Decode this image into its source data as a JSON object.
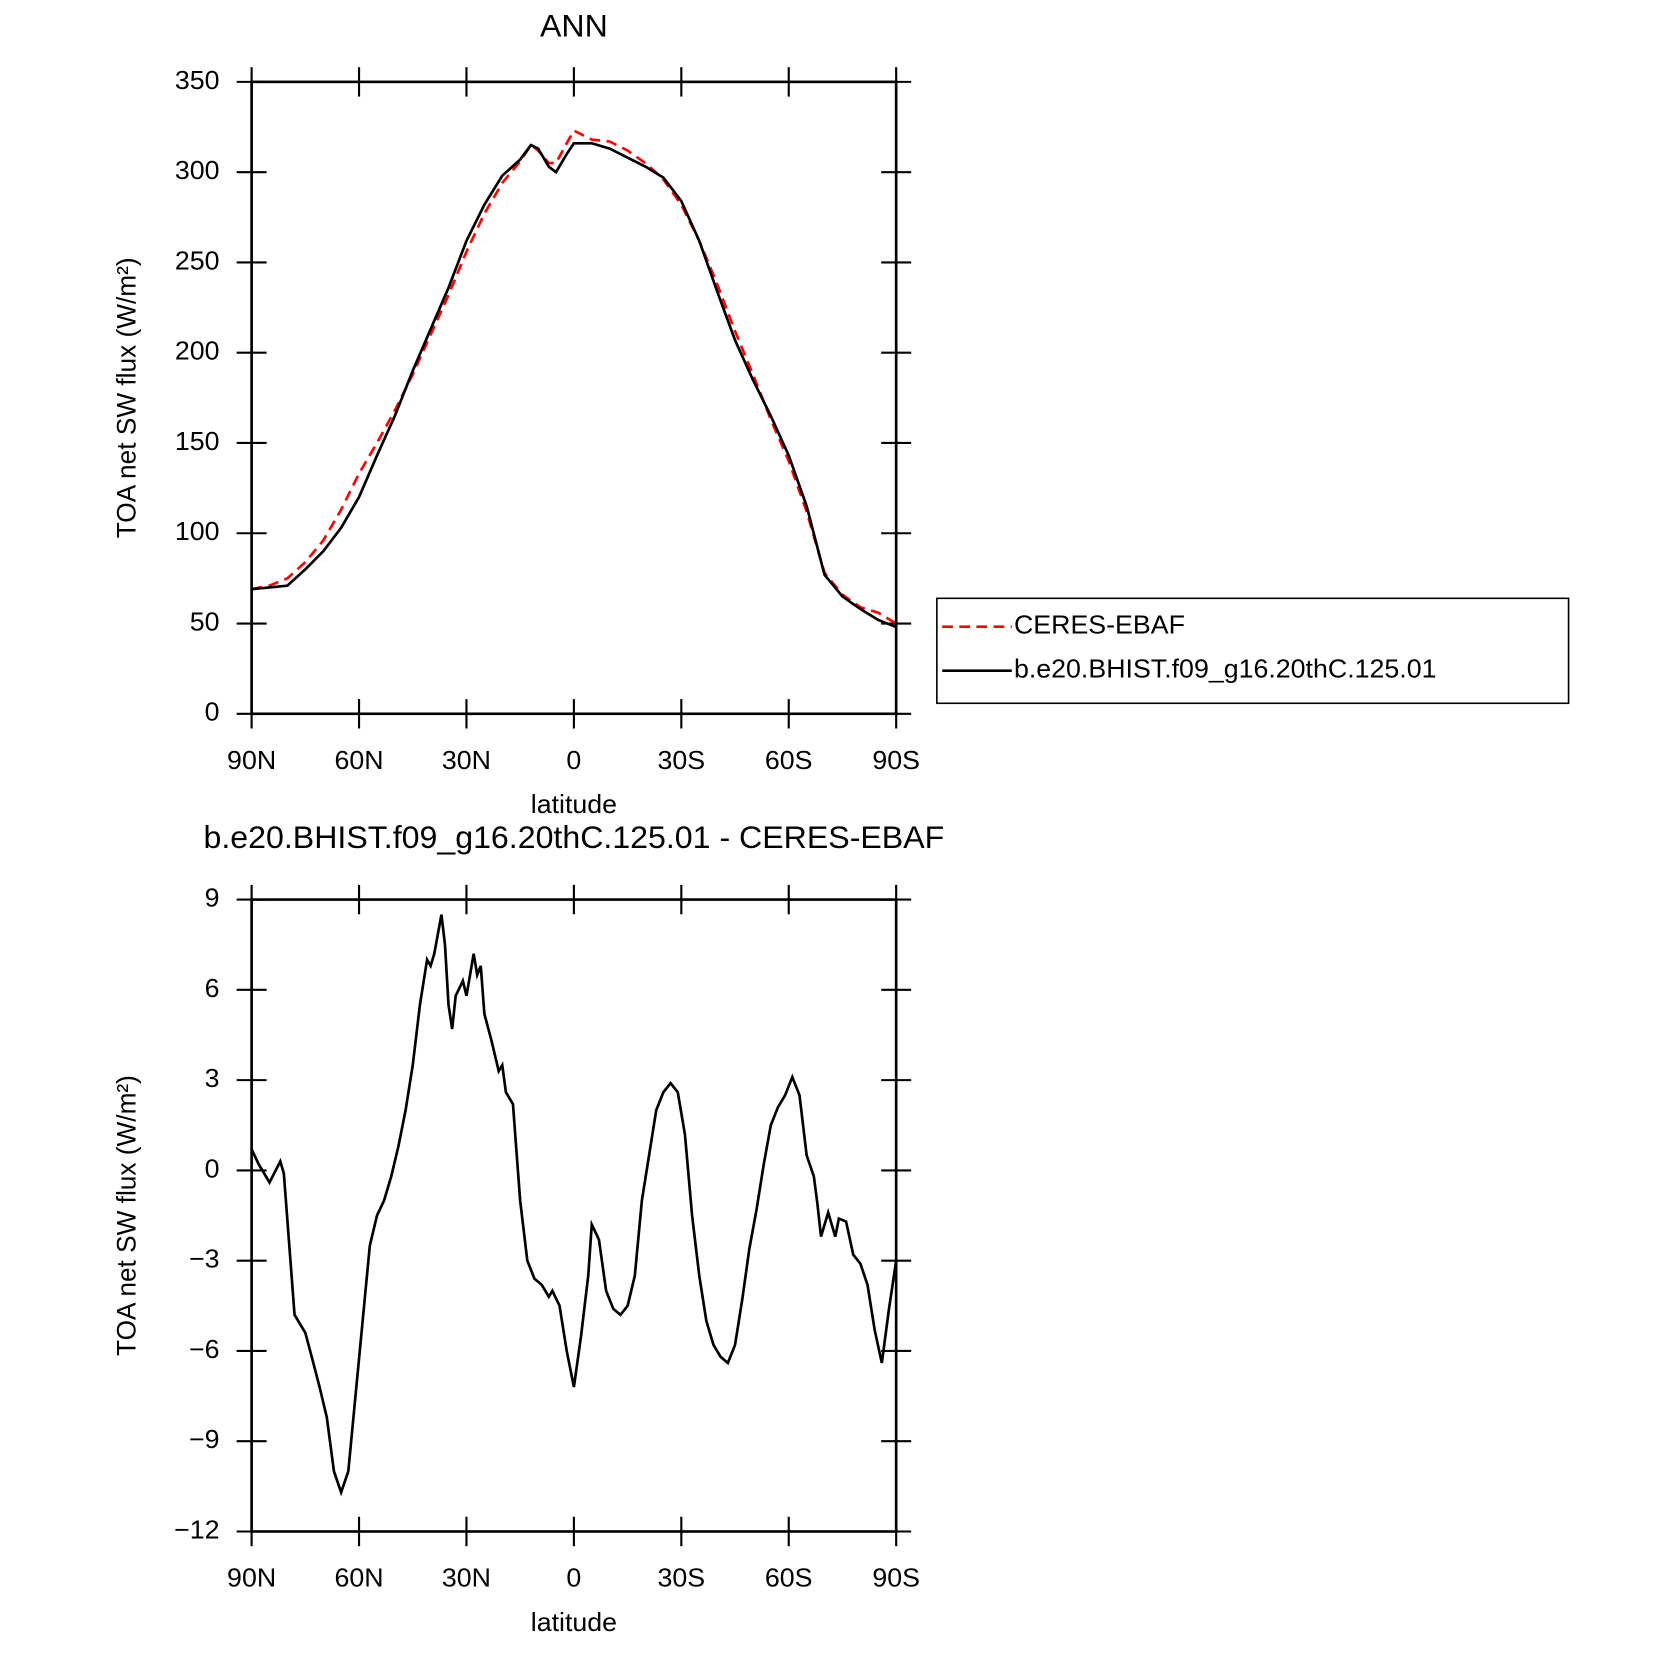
{
  "chart_data": [
    {
      "type": "line",
      "title": "ANN",
      "xlabel": "latitude",
      "ylabel": "TOA net SW flux (W/m²)",
      "xlim": [
        90,
        -90
      ],
      "xticks": [
        {
          "value": 90,
          "label": "90N"
        },
        {
          "value": 60,
          "label": "60N"
        },
        {
          "value": 30,
          "label": "30N"
        },
        0,
        {
          "value": -30,
          "label": "30S"
        },
        {
          "value": -60,
          "label": "60S"
        },
        {
          "value": -90,
          "label": "90S"
        }
      ],
      "ylim": [
        0,
        350
      ],
      "yticks": [
        0,
        50,
        100,
        150,
        200,
        250,
        300,
        350
      ],
      "legend": "right",
      "x": [
        90,
        85,
        80,
        75,
        70,
        65,
        60,
        55,
        50,
        45,
        40,
        35,
        30,
        25,
        20,
        15,
        12,
        10,
        7,
        5,
        2,
        0,
        -5,
        -10,
        -15,
        -20,
        -25,
        -30,
        -35,
        -40,
        -45,
        -50,
        -55,
        -60,
        -65,
        -70,
        -75,
        -80,
        -85,
        -90
      ],
      "series": [
        {
          "name": "CERES-EBAF",
          "color": "#ff0000",
          "style": "dashed",
          "values": [
            69,
            71,
            75,
            84,
            96,
            113,
            133,
            150,
            168,
            188,
            210,
            232,
            256,
            277,
            294,
            306,
            315,
            312,
            305,
            305,
            316,
            323,
            318,
            317,
            312,
            305,
            296,
            282,
            262,
            238,
            212,
            188,
            163,
            140,
            112,
            78,
            66,
            59,
            56,
            50
          ]
        },
        {
          "name": "b.e20.BHIST.f09_g16.20thC.125.01",
          "color": "#000000",
          "style": "solid",
          "values": [
            69,
            70,
            71,
            80,
            90,
            103,
            120,
            143,
            165,
            190,
            213,
            236,
            262,
            282,
            298,
            307,
            315,
            313,
            303,
            300,
            310,
            316,
            316,
            313,
            308,
            303,
            297,
            284,
            262,
            234,
            207,
            185,
            165,
            143,
            115,
            77,
            65,
            58,
            52,
            48
          ]
        }
      ]
    },
    {
      "type": "line",
      "title": "b.e20.BHIST.f09_g16.20thC.125.01 - CERES-EBAF",
      "xlabel": "latitude",
      "ylabel": "TOA net SW flux (W/m²)",
      "xlim": [
        90,
        -90
      ],
      "xticks": [
        {
          "value": 90,
          "label": "90N"
        },
        {
          "value": 60,
          "label": "60N"
        },
        {
          "value": 30,
          "label": "30N"
        },
        0,
        {
          "value": -30,
          "label": "30S"
        },
        {
          "value": -60,
          "label": "60S"
        },
        {
          "value": -90,
          "label": "90S"
        }
      ],
      "ylim": [
        -12,
        9
      ],
      "yticks": [
        {
          "value": -12,
          "label": "−12"
        },
        {
          "value": -9,
          "label": "−9"
        },
        {
          "value": -6,
          "label": "−6"
        },
        {
          "value": -3,
          "label": "−3"
        },
        0,
        3,
        6,
        9
      ],
      "x": [
        90,
        88,
        85,
        82,
        81,
        78,
        75,
        73,
        71,
        69,
        67,
        65,
        63,
        61,
        59,
        57,
        55,
        53,
        51,
        49,
        47,
        45,
        43,
        41,
        40,
        39,
        37,
        36,
        35,
        34,
        33,
        31,
        30,
        28,
        27,
        26,
        25,
        23,
        21,
        20,
        19,
        17,
        15,
        13,
        11,
        9,
        7,
        6,
        4,
        2,
        0,
        -2,
        -4,
        -5,
        -7,
        -9,
        -11,
        -13,
        -15,
        -17,
        -19,
        -21,
        -23,
        -25,
        -27,
        -29,
        -31,
        -33,
        -35,
        -37,
        -39,
        -41,
        -43,
        -45,
        -47,
        -49,
        -51,
        -53,
        -55,
        -57,
        -59,
        -61,
        -63,
        -65,
        -67,
        -68,
        -69,
        -71,
        -73,
        -74,
        -76,
        -78,
        -80,
        -82,
        -84,
        -86,
        -88,
        -90
      ],
      "series": [
        {
          "name": "b.e20.BHIST.f09_g16.20thC.125.01",
          "color": "#000000",
          "style": "solid",
          "values": [
            0.7,
            0.2,
            -0.4,
            0.3,
            -0.1,
            -4.8,
            -5.4,
            -6.3,
            -7.2,
            -8.2,
            -10,
            -10.7,
            -10,
            -7.5,
            -5,
            -2.5,
            -1.5,
            -1,
            -0.2,
            0.8,
            2,
            3.5,
            5.5,
            7,
            6.8,
            7.2,
            8.5,
            7.5,
            5.5,
            4.7,
            5.8,
            6.3,
            5.8,
            7.2,
            6.5,
            6.8,
            5.2,
            4.3,
            3.3,
            3.5,
            2.6,
            2.2,
            -1,
            -3,
            -3.6,
            -3.8,
            -4.2,
            -4,
            -4.5,
            -6,
            -7.2,
            -5.5,
            -3.5,
            -1.8,
            -2.3,
            -4,
            -4.6,
            -4.8,
            -4.5,
            -3.5,
            -1,
            0.5,
            2,
            2.6,
            2.9,
            2.6,
            1.2,
            -1.5,
            -3.5,
            -5,
            -5.8,
            -6.2,
            -6.4,
            -5.8,
            -4.3,
            -2.6,
            -1.3,
            0.2,
            1.5,
            2.1,
            2.5,
            3.1,
            2.5,
            0.5,
            -0.2,
            -1.1,
            -2.2,
            -1.4,
            -2.2,
            -1.6,
            -1.7,
            -2.8,
            -3.1,
            -3.8,
            -5.3,
            -6.4,
            -4.6,
            -3
          ]
        }
      ]
    }
  ]
}
